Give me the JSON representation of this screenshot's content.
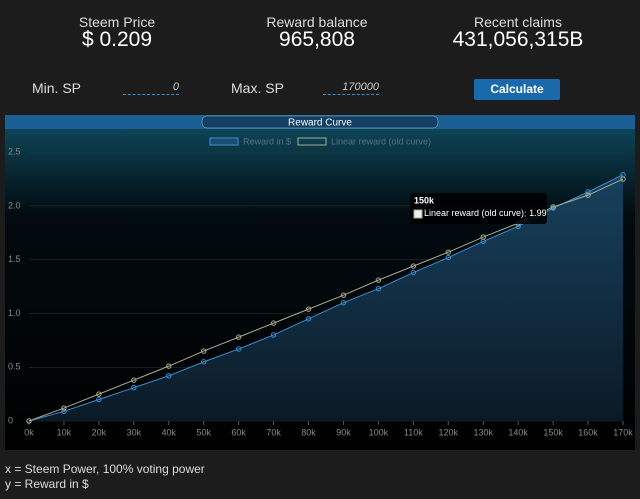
{
  "header": {
    "stats": [
      {
        "label": "Steem Price",
        "value": "$ 0.209"
      },
      {
        "label": "Reward balance",
        "value": "965,808"
      },
      {
        "label": "Recent claims",
        "value": "431,056,315B"
      }
    ]
  },
  "inputs": {
    "min_label": "Min. SP",
    "min_value": "0",
    "max_label": "Max. SP",
    "max_value": "170000",
    "button": "Calculate"
  },
  "chart_data": {
    "type": "line",
    "title": "Reward Curve",
    "x": [
      0,
      10000,
      20000,
      30000,
      40000,
      50000,
      60000,
      70000,
      80000,
      90000,
      100000,
      110000,
      120000,
      130000,
      140000,
      150000,
      160000,
      170000
    ],
    "series": [
      {
        "name": "Reward in $",
        "color": "#3a8fd0",
        "area": true,
        "values": [
          0,
          0.09,
          0.2,
          0.31,
          0.42,
          0.55,
          0.67,
          0.8,
          0.95,
          1.1,
          1.23,
          1.38,
          1.52,
          1.67,
          1.81,
          1.98,
          2.13,
          2.29
        ]
      },
      {
        "name": "Linear reward (old curve)",
        "color": "#a9ab8c",
        "values": [
          0,
          0.12,
          0.25,
          0.38,
          0.51,
          0.65,
          0.78,
          0.91,
          1.04,
          1.17,
          1.31,
          1.44,
          1.57,
          1.71,
          1.84,
          1.99,
          2.1,
          2.25
        ]
      }
    ],
    "xlim": [
      0,
      170000
    ],
    "xticks": [
      {
        "value": 0,
        "label": "0k"
      },
      {
        "value": 10000,
        "label": "10k"
      },
      {
        "value": 20000,
        "label": "20k"
      },
      {
        "value": 30000,
        "label": "30k"
      },
      {
        "value": 40000,
        "label": "40k"
      },
      {
        "value": 50000,
        "label": "50k"
      },
      {
        "value": 60000,
        "label": "60k"
      },
      {
        "value": 70000,
        "label": "70k"
      },
      {
        "value": 80000,
        "label": "80k"
      },
      {
        "value": 90000,
        "label": "90k"
      },
      {
        "value": 100000,
        "label": "100k"
      },
      {
        "value": 110000,
        "label": "110k"
      },
      {
        "value": 120000,
        "label": "120k"
      },
      {
        "value": 130000,
        "label": "130k"
      },
      {
        "value": 140000,
        "label": "140k"
      },
      {
        "value": 150000,
        "label": "150k"
      },
      {
        "value": 160000,
        "label": "160k"
      },
      {
        "value": 170000,
        "label": "170k"
      }
    ],
    "ylim": [
      0,
      2.65
    ],
    "yticks": [
      0,
      0.5,
      {
        "value": 1,
        "label": "1.0"
      },
      1.5,
      {
        "value": 2,
        "label": "2.0"
      },
      2.5
    ],
    "tooltip": {
      "index": 15,
      "series": 1
    }
  },
  "footer": {
    "lines": [
      "x = Steem Power, 100% voting power",
      "y = Reward in $"
    ]
  }
}
